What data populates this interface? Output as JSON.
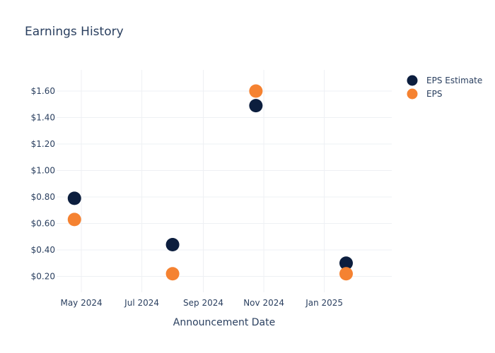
{
  "chart_data": {
    "type": "scatter",
    "title": "Earnings History",
    "xlabel": "Announcement Date",
    "ylabel": "",
    "x_ticks": [
      {
        "date": "2024-05-01",
        "label": "May 2024"
      },
      {
        "date": "2024-07-01",
        "label": "Jul 2024"
      },
      {
        "date": "2024-09-01",
        "label": "Sep 2024"
      },
      {
        "date": "2024-11-01",
        "label": "Nov 2024"
      },
      {
        "date": "2025-01-01",
        "label": "Jan 2025"
      }
    ],
    "y_ticks": [
      {
        "value": 0.2,
        "label": "$0.20"
      },
      {
        "value": 0.4,
        "label": "$0.40"
      },
      {
        "value": 0.6,
        "label": "$0.60"
      },
      {
        "value": 0.8,
        "label": "$0.80"
      },
      {
        "value": 1.0,
        "label": "$1.00"
      },
      {
        "value": 1.2,
        "label": "$1.20"
      },
      {
        "value": 1.4,
        "label": "$1.40"
      },
      {
        "value": 1.6,
        "label": "$1.60"
      }
    ],
    "xlim": [
      "2024-04-06",
      "2025-03-10"
    ],
    "ylim": [
      0.08,
      1.76
    ],
    "grid": true,
    "legend_position": "top-right",
    "series": [
      {
        "name": "EPS Estimate",
        "color": "#0c1e3e",
        "points": [
          {
            "x": "2024-04-24",
            "y": 0.79
          },
          {
            "x": "2024-08-01",
            "y": 0.44
          },
          {
            "x": "2024-10-24",
            "y": 1.49
          },
          {
            "x": "2025-01-23",
            "y": 0.3
          }
        ]
      },
      {
        "name": "EPS",
        "color": "#f58231",
        "points": [
          {
            "x": "2024-04-24",
            "y": 0.63
          },
          {
            "x": "2024-08-01",
            "y": 0.22
          },
          {
            "x": "2024-10-24",
            "y": 1.6
          },
          {
            "x": "2025-01-23",
            "y": 0.22
          }
        ]
      }
    ]
  }
}
